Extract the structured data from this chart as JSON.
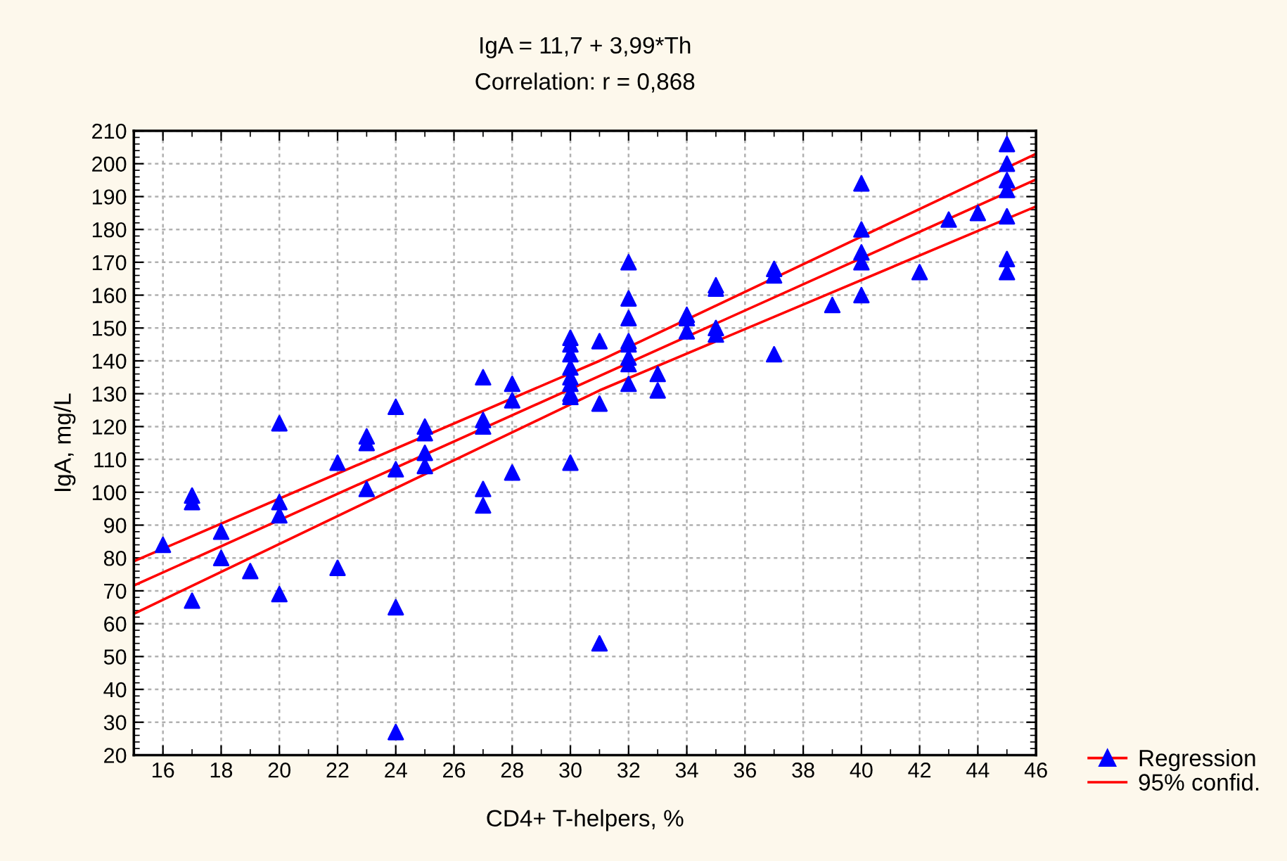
{
  "chart_data": {
    "type": "scatter",
    "title": "IgA = 11,7 + 3,99*Th",
    "subtitle": "Correlation: r = 0,868",
    "xlabel": "CD4+ T-helpers, %",
    "ylabel": "IgA, mg/L",
    "xlim": [
      15,
      46
    ],
    "xticks": [
      16,
      18,
      20,
      22,
      24,
      26,
      28,
      30,
      32,
      34,
      36,
      38,
      40,
      42,
      44,
      46
    ],
    "ylim": [
      20,
      210
    ],
    "yticks": [
      20,
      30,
      40,
      50,
      60,
      70,
      80,
      90,
      100,
      110,
      120,
      130,
      140,
      150,
      160,
      170,
      180,
      190,
      200,
      210
    ],
    "grid": true,
    "legend": "bottom right",
    "series": [
      {
        "marker": "triangle",
        "color": "#0000ff",
        "x": [
          16,
          17,
          17,
          17,
          18,
          18,
          19,
          20,
          20,
          20,
          20,
          22,
          22,
          23,
          23,
          23,
          24,
          24,
          24,
          24,
          25,
          25,
          25,
          25,
          27,
          27,
          27,
          27,
          27,
          28,
          28,
          28,
          30,
          30,
          30,
          30,
          30,
          30,
          30,
          30,
          30,
          31,
          31,
          31,
          32,
          32,
          32,
          32,
          32,
          32,
          32,
          32,
          33,
          33,
          34,
          34,
          34,
          35,
          35,
          35,
          35,
          37,
          37,
          37,
          39,
          40,
          40,
          40,
          40,
          40,
          42,
          43,
          44,
          45,
          45,
          45,
          45,
          45,
          45,
          45
        ],
        "values": [
          84,
          99,
          97,
          67,
          88,
          80,
          76,
          121,
          97,
          93,
          69,
          109,
          77,
          117,
          115,
          101,
          126,
          107,
          65,
          27,
          120,
          118,
          112,
          108,
          135,
          122,
          120,
          101,
          96,
          133,
          128,
          106,
          147,
          145,
          142,
          138,
          135,
          133,
          130,
          129,
          109,
          146,
          127,
          54,
          170,
          159,
          153,
          146,
          145,
          141,
          139,
          133,
          136,
          131,
          154,
          153,
          149,
          163,
          162,
          150,
          148,
          168,
          166,
          142,
          157,
          194,
          180,
          173,
          170,
          160,
          167,
          183,
          185,
          206,
          200,
          195,
          192,
          184,
          171,
          167
        ]
      },
      {
        "type": "line",
        "marker": "none",
        "name": "Regression",
        "color": "#ff0000",
        "x": [
          15,
          46
        ],
        "values": [
          71.6,
          195.2
        ]
      },
      {
        "type": "line",
        "marker": "none",
        "name": "95% confid.",
        "color": "#ff0000",
        "x": [
          15,
          31,
          46
        ],
        "values": [
          79,
          140,
          203
        ]
      },
      {
        "type": "line",
        "marker": "none",
        "color": "#ff0000",
        "x": [
          15,
          31,
          46
        ],
        "values": [
          63,
          131,
          187
        ]
      }
    ]
  }
}
